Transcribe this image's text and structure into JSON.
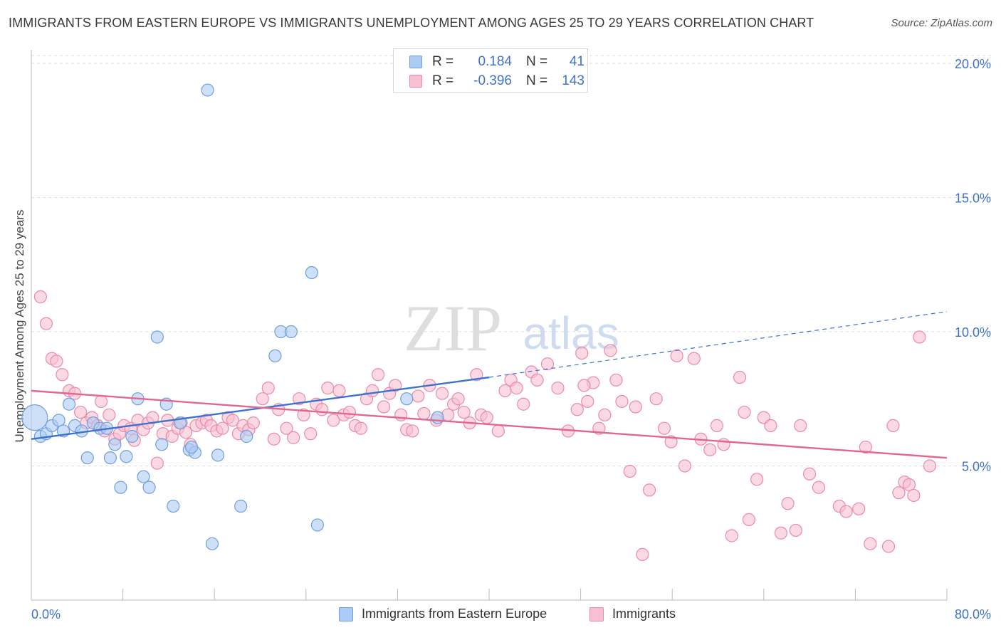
{
  "header": {
    "title": "IMMIGRANTS FROM EASTERN EUROPE VS IMMIGRANTS UNEMPLOYMENT AMONG AGES 25 TO 29 YEARS CORRELATION CHART",
    "source": "Source: ZipAtlas.com"
  },
  "legend_top": {
    "rows": [
      {
        "r_label": "R =",
        "r_value": "0.184",
        "n_label": "N =",
        "n_value": "41"
      },
      {
        "r_label": "R =",
        "r_value": "-0.396",
        "n_label": "N =",
        "n_value": "143"
      }
    ]
  },
  "legend_bottom": {
    "series1": "Immigrants from Eastern Europe",
    "series2": "Immigrants"
  },
  "watermark": {
    "part1": "ZIP",
    "part2": "atlas"
  },
  "colors": {
    "blue_fill": "#aeccf3",
    "blue_stroke": "#6f9fe0",
    "blue_line": "#3a72d0",
    "pink_fill": "#f8bfd1",
    "pink_stroke": "#ea8aab",
    "pink_line": "#e2668f",
    "tick_text": "#3d73cc",
    "grid": "#dcdcdc"
  },
  "chart_data": {
    "type": "scatter",
    "title": "IMMIGRANTS FROM EASTERN EUROPE VS IMMIGRANTS UNEMPLOYMENT AMONG AGES 25 TO 29 YEARS CORRELATION CHART",
    "xlabel": "",
    "ylabel": "Unemployment Among Ages 25 to 29 years",
    "xlim": [
      0,
      80
    ],
    "ylim": [
      0,
      20.5
    ],
    "x_ticks": [
      0,
      80
    ],
    "x_tick_labels": [
      "0.0%",
      "80.0%"
    ],
    "x_minor_ticks": [
      8,
      16,
      24,
      32,
      40,
      48,
      56,
      64,
      72
    ],
    "y_ticks": [
      5,
      10,
      15,
      20
    ],
    "y_tick_labels": [
      "5.0%",
      "10.0%",
      "15.0%",
      "20.0%"
    ],
    "grid": true,
    "series": [
      {
        "name": "Immigrants from Eastern Europe",
        "R": 0.184,
        "N": 41,
        "trend": {
          "x0": 0,
          "y0": 6.0,
          "x1": 40,
          "y1": 8.3,
          "dash_to_x": 80,
          "dash_to_y": 10.75
        },
        "points": [
          {
            "x": 0.3,
            "y": 6.8,
            "big": true
          },
          {
            "x": 0.8,
            "y": 6.1
          },
          {
            "x": 1.3,
            "y": 6.2
          },
          {
            "x": 1.8,
            "y": 6.5
          },
          {
            "x": 2.4,
            "y": 6.7
          },
          {
            "x": 2.8,
            "y": 6.3
          },
          {
            "x": 3.3,
            "y": 7.3
          },
          {
            "x": 3.8,
            "y": 6.5
          },
          {
            "x": 4.4,
            "y": 6.3
          },
          {
            "x": 4.9,
            "y": 5.3
          },
          {
            "x": 5.4,
            "y": 6.6
          },
          {
            "x": 6.0,
            "y": 6.4
          },
          {
            "x": 6.6,
            "y": 6.4
          },
          {
            "x": 6.9,
            "y": 5.3
          },
          {
            "x": 7.3,
            "y": 5.8
          },
          {
            "x": 7.8,
            "y": 4.2
          },
          {
            "x": 8.3,
            "y": 5.35
          },
          {
            "x": 8.8,
            "y": 6.1
          },
          {
            "x": 9.3,
            "y": 7.5
          },
          {
            "x": 9.8,
            "y": 4.6
          },
          {
            "x": 10.3,
            "y": 4.2
          },
          {
            "x": 11.0,
            "y": 9.8
          },
          {
            "x": 11.4,
            "y": 5.8
          },
          {
            "x": 11.8,
            "y": 7.3
          },
          {
            "x": 12.4,
            "y": 3.5
          },
          {
            "x": 13.0,
            "y": 6.6
          },
          {
            "x": 13.8,
            "y": 5.6
          },
          {
            "x": 14.3,
            "y": 5.5
          },
          {
            "x": 15.4,
            "y": 19.0
          },
          {
            "x": 15.8,
            "y": 2.1
          },
          {
            "x": 16.3,
            "y": 5.4
          },
          {
            "x": 18.3,
            "y": 3.5
          },
          {
            "x": 18.8,
            "y": 6.1
          },
          {
            "x": 21.3,
            "y": 9.1
          },
          {
            "x": 21.8,
            "y": 10.0
          },
          {
            "x": 22.7,
            "y": 10.0
          },
          {
            "x": 24.5,
            "y": 12.2
          },
          {
            "x": 25.0,
            "y": 2.8
          },
          {
            "x": 32.8,
            "y": 7.5
          },
          {
            "x": 35.5,
            "y": 6.8
          },
          {
            "x": 14.0,
            "y": 5.7
          }
        ]
      },
      {
        "name": "Immigrants",
        "R": -0.396,
        "N": 143,
        "trend": {
          "x0": 0,
          "y0": 7.8,
          "x1": 80,
          "y1": 5.3
        },
        "points": [
          {
            "x": 0.8,
            "y": 11.3
          },
          {
            "x": 1.3,
            "y": 10.3
          },
          {
            "x": 1.8,
            "y": 9.0
          },
          {
            "x": 2.2,
            "y": 8.9
          },
          {
            "x": 2.7,
            "y": 8.4
          },
          {
            "x": 3.3,
            "y": 7.8
          },
          {
            "x": 3.8,
            "y": 7.7
          },
          {
            "x": 4.3,
            "y": 7.0
          },
          {
            "x": 4.8,
            "y": 6.6
          },
          {
            "x": 5.3,
            "y": 6.8
          },
          {
            "x": 5.8,
            "y": 6.5
          },
          {
            "x": 6.1,
            "y": 7.4
          },
          {
            "x": 6.4,
            "y": 6.3
          },
          {
            "x": 6.8,
            "y": 6.9
          },
          {
            "x": 7.3,
            "y": 6.0
          },
          {
            "x": 7.7,
            "y": 6.2
          },
          {
            "x": 8.1,
            "y": 6.5
          },
          {
            "x": 8.7,
            "y": 6.4
          },
          {
            "x": 9.0,
            "y": 5.95
          },
          {
            "x": 9.3,
            "y": 6.7
          },
          {
            "x": 9.8,
            "y": 6.35
          },
          {
            "x": 10.2,
            "y": 6.6
          },
          {
            "x": 10.6,
            "y": 6.8
          },
          {
            "x": 11.0,
            "y": 5.1
          },
          {
            "x": 11.5,
            "y": 6.2
          },
          {
            "x": 11.9,
            "y": 6.7
          },
          {
            "x": 12.3,
            "y": 6.1
          },
          {
            "x": 12.8,
            "y": 6.4
          },
          {
            "x": 13.1,
            "y": 6.6
          },
          {
            "x": 13.5,
            "y": 6.25
          },
          {
            "x": 13.9,
            "y": 5.8
          },
          {
            "x": 14.4,
            "y": 6.5
          },
          {
            "x": 14.9,
            "y": 6.6
          },
          {
            "x": 15.3,
            "y": 6.7
          },
          {
            "x": 15.7,
            "y": 6.5
          },
          {
            "x": 16.2,
            "y": 6.3
          },
          {
            "x": 16.7,
            "y": 6.4
          },
          {
            "x": 17.2,
            "y": 6.8
          },
          {
            "x": 17.6,
            "y": 6.7
          },
          {
            "x": 18.1,
            "y": 6.2
          },
          {
            "x": 18.5,
            "y": 6.5
          },
          {
            "x": 19.0,
            "y": 6.35
          },
          {
            "x": 19.4,
            "y": 6.6
          },
          {
            "x": 20.2,
            "y": 7.5
          },
          {
            "x": 20.7,
            "y": 7.9
          },
          {
            "x": 21.2,
            "y": 6.0
          },
          {
            "x": 21.6,
            "y": 7.1
          },
          {
            "x": 22.3,
            "y": 6.4
          },
          {
            "x": 22.9,
            "y": 6.05
          },
          {
            "x": 23.4,
            "y": 7.5
          },
          {
            "x": 23.8,
            "y": 6.9
          },
          {
            "x": 24.4,
            "y": 6.2
          },
          {
            "x": 24.9,
            "y": 7.3
          },
          {
            "x": 25.4,
            "y": 7.1
          },
          {
            "x": 25.9,
            "y": 7.9
          },
          {
            "x": 26.4,
            "y": 6.7
          },
          {
            "x": 26.9,
            "y": 7.8
          },
          {
            "x": 27.3,
            "y": 6.9
          },
          {
            "x": 27.8,
            "y": 7.0
          },
          {
            "x": 28.3,
            "y": 6.5
          },
          {
            "x": 28.8,
            "y": 6.4
          },
          {
            "x": 29.3,
            "y": 7.5
          },
          {
            "x": 29.8,
            "y": 7.8
          },
          {
            "x": 30.3,
            "y": 8.4
          },
          {
            "x": 30.8,
            "y": 7.2
          },
          {
            "x": 31.3,
            "y": 7.7
          },
          {
            "x": 31.8,
            "y": 8.0
          },
          {
            "x": 32.3,
            "y": 6.9
          },
          {
            "x": 32.8,
            "y": 6.35
          },
          {
            "x": 33.3,
            "y": 6.3
          },
          {
            "x": 33.8,
            "y": 7.6
          },
          {
            "x": 34.3,
            "y": 6.95
          },
          {
            "x": 34.8,
            "y": 8.0
          },
          {
            "x": 35.4,
            "y": 6.7
          },
          {
            "x": 35.9,
            "y": 7.7
          },
          {
            "x": 36.4,
            "y": 6.9
          },
          {
            "x": 36.9,
            "y": 7.3
          },
          {
            "x": 37.3,
            "y": 7.5
          },
          {
            "x": 37.8,
            "y": 7.0
          },
          {
            "x": 38.3,
            "y": 6.6
          },
          {
            "x": 38.9,
            "y": 8.4
          },
          {
            "x": 39.3,
            "y": 6.9
          },
          {
            "x": 39.8,
            "y": 6.8
          },
          {
            "x": 40.8,
            "y": 6.3
          },
          {
            "x": 41.4,
            "y": 7.8
          },
          {
            "x": 41.9,
            "y": 8.2
          },
          {
            "x": 42.4,
            "y": 7.9
          },
          {
            "x": 43.0,
            "y": 7.3
          },
          {
            "x": 43.7,
            "y": 8.5
          },
          {
            "x": 44.2,
            "y": 8.2
          },
          {
            "x": 45.1,
            "y": 8.8
          },
          {
            "x": 46.0,
            "y": 7.9
          },
          {
            "x": 46.9,
            "y": 6.3
          },
          {
            "x": 47.7,
            "y": 7.1
          },
          {
            "x": 48.1,
            "y": 9.2
          },
          {
            "x": 48.6,
            "y": 7.4
          },
          {
            "x": 49.1,
            "y": 8.1
          },
          {
            "x": 49.6,
            "y": 6.4
          },
          {
            "x": 50.1,
            "y": 6.9
          },
          {
            "x": 50.6,
            "y": 9.3
          },
          {
            "x": 51.1,
            "y": 8.2
          },
          {
            "x": 51.6,
            "y": 7.4
          },
          {
            "x": 52.3,
            "y": 4.8
          },
          {
            "x": 52.8,
            "y": 7.2
          },
          {
            "x": 53.4,
            "y": 1.7
          },
          {
            "x": 54.0,
            "y": 4.1
          },
          {
            "x": 54.6,
            "y": 7.5
          },
          {
            "x": 55.3,
            "y": 6.4
          },
          {
            "x": 55.9,
            "y": 5.9
          },
          {
            "x": 56.4,
            "y": 9.1
          },
          {
            "x": 57.1,
            "y": 5.0
          },
          {
            "x": 57.9,
            "y": 9.0
          },
          {
            "x": 58.5,
            "y": 6.0
          },
          {
            "x": 59.3,
            "y": 5.6
          },
          {
            "x": 59.9,
            "y": 6.5
          },
          {
            "x": 60.5,
            "y": 5.8
          },
          {
            "x": 61.2,
            "y": 2.4
          },
          {
            "x": 61.9,
            "y": 8.3
          },
          {
            "x": 62.3,
            "y": 7.0
          },
          {
            "x": 62.7,
            "y": 3.0
          },
          {
            "x": 63.4,
            "y": 4.5
          },
          {
            "x": 64.0,
            "y": 6.8
          },
          {
            "x": 64.6,
            "y": 6.5
          },
          {
            "x": 65.5,
            "y": 2.5
          },
          {
            "x": 66.1,
            "y": 3.6
          },
          {
            "x": 66.8,
            "y": 2.6
          },
          {
            "x": 67.2,
            "y": 6.5
          },
          {
            "x": 68.0,
            "y": 4.7
          },
          {
            "x": 68.8,
            "y": 4.2
          },
          {
            "x": 70.6,
            "y": 3.5
          },
          {
            "x": 71.2,
            "y": 3.3
          },
          {
            "x": 72.3,
            "y": 3.4
          },
          {
            "x": 72.9,
            "y": 5.7
          },
          {
            "x": 73.3,
            "y": 2.1
          },
          {
            "x": 74.9,
            "y": 2.0
          },
          {
            "x": 75.3,
            "y": 6.5
          },
          {
            "x": 75.8,
            "y": 4.0
          },
          {
            "x": 76.3,
            "y": 4.4
          },
          {
            "x": 76.7,
            "y": 4.3
          },
          {
            "x": 77.1,
            "y": 3.9
          },
          {
            "x": 77.6,
            "y": 9.8
          },
          {
            "x": 78.5,
            "y": 5.0
          },
          {
            "x": 48.3,
            "y": 8.0
          }
        ]
      }
    ]
  }
}
